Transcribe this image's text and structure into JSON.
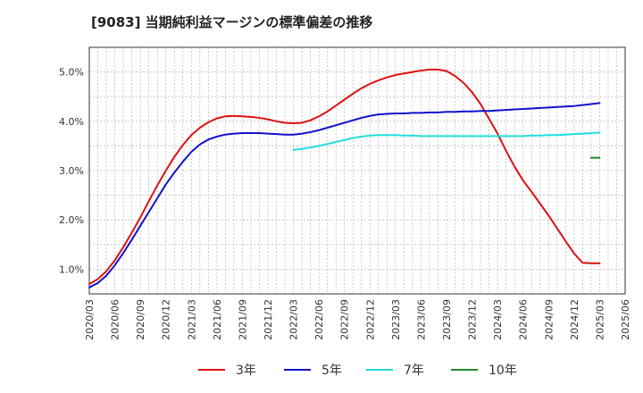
{
  "chart_data": {
    "type": "line",
    "title": "[9083]  当期純利益マージンの標準偏差の推移",
    "xlabel": "",
    "ylabel": "",
    "ylim": [
      0.5,
      5.5
    ],
    "y_ticks": [
      "1.0%",
      "2.0%",
      "3.0%",
      "4.0%",
      "5.0%"
    ],
    "y_tick_values": [
      1,
      2,
      3,
      4,
      5
    ],
    "x_ticks": [
      "2020/03",
      "2020/06",
      "2020/09",
      "2020/12",
      "2021/03",
      "2021/06",
      "2021/09",
      "2021/12",
      "2022/03",
      "2022/06",
      "2022/09",
      "2022/12",
      "2023/03",
      "2023/06",
      "2023/09",
      "2023/12",
      "2024/03",
      "2024/06",
      "2024/09",
      "2024/12",
      "2025/03",
      "2025/06"
    ],
    "grid": true,
    "legend_position": "bottom",
    "series": [
      {
        "name": "3年",
        "color": "#dd1111",
        "points": [
          [
            "2020/03",
            0.7
          ],
          [
            "2020/04",
            0.8
          ],
          [
            "2020/05",
            0.96
          ],
          [
            "2020/06",
            1.18
          ],
          [
            "2020/07",
            1.45
          ],
          [
            "2020/08",
            1.74
          ],
          [
            "2020/09",
            2.05
          ],
          [
            "2020/10",
            2.38
          ],
          [
            "2020/11",
            2.7
          ],
          [
            "2020/12",
            3.0
          ],
          [
            "2021/01",
            3.28
          ],
          [
            "2021/02",
            3.52
          ],
          [
            "2021/03",
            3.72
          ],
          [
            "2021/04",
            3.87
          ],
          [
            "2021/05",
            3.98
          ],
          [
            "2021/06",
            4.06
          ],
          [
            "2021/07",
            4.1
          ],
          [
            "2021/08",
            4.11
          ],
          [
            "2021/09",
            4.1
          ],
          [
            "2021/10",
            4.09
          ],
          [
            "2021/11",
            4.07
          ],
          [
            "2021/12",
            4.04
          ],
          [
            "2022/01",
            4.0
          ],
          [
            "2022/02",
            3.97
          ],
          [
            "2022/03",
            3.96
          ],
          [
            "2022/04",
            3.97
          ],
          [
            "2022/05",
            4.02
          ],
          [
            "2022/06",
            4.1
          ],
          [
            "2022/07",
            4.2
          ],
          [
            "2022/08",
            4.32
          ],
          [
            "2022/09",
            4.44
          ],
          [
            "2022/10",
            4.56
          ],
          [
            "2022/11",
            4.67
          ],
          [
            "2022/12",
            4.76
          ],
          [
            "2023/01",
            4.83
          ],
          [
            "2023/02",
            4.89
          ],
          [
            "2023/03",
            4.94
          ],
          [
            "2023/04",
            4.97
          ],
          [
            "2023/05",
            5.0
          ],
          [
            "2023/06",
            5.03
          ],
          [
            "2023/07",
            5.05
          ],
          [
            "2023/08",
            5.05
          ],
          [
            "2023/09",
            5.02
          ],
          [
            "2023/10",
            4.92
          ],
          [
            "2023/11",
            4.78
          ],
          [
            "2023/12",
            4.59
          ],
          [
            "2024/01",
            4.35
          ],
          [
            "2024/02",
            4.05
          ],
          [
            "2024/03",
            3.75
          ],
          [
            "2024/04",
            3.4
          ],
          [
            "2024/05",
            3.08
          ],
          [
            "2024/06",
            2.8
          ],
          [
            "2024/07",
            2.57
          ],
          [
            "2024/08",
            2.33
          ],
          [
            "2024/09",
            2.09
          ],
          [
            "2024/10",
            1.83
          ],
          [
            "2024/11",
            1.57
          ],
          [
            "2024/12",
            1.32
          ],
          [
            "2025/01",
            1.13
          ],
          [
            "2025/02",
            1.12
          ],
          [
            "2025/03",
            1.12
          ]
        ]
      },
      {
        "name": "5年",
        "color": "#1111cc",
        "points": [
          [
            "2020/03",
            0.63
          ],
          [
            "2020/04",
            0.72
          ],
          [
            "2020/05",
            0.87
          ],
          [
            "2020/06",
            1.08
          ],
          [
            "2020/07",
            1.33
          ],
          [
            "2020/08",
            1.6
          ],
          [
            "2020/09",
            1.88
          ],
          [
            "2020/10",
            2.16
          ],
          [
            "2020/11",
            2.44
          ],
          [
            "2020/12",
            2.72
          ],
          [
            "2021/01",
            2.96
          ],
          [
            "2021/02",
            3.18
          ],
          [
            "2021/03",
            3.38
          ],
          [
            "2021/04",
            3.53
          ],
          [
            "2021/05",
            3.63
          ],
          [
            "2021/06",
            3.69
          ],
          [
            "2021/07",
            3.73
          ],
          [
            "2021/08",
            3.75
          ],
          [
            "2021/09",
            3.76
          ],
          [
            "2021/10",
            3.76
          ],
          [
            "2021/11",
            3.76
          ],
          [
            "2021/12",
            3.75
          ],
          [
            "2022/01",
            3.74
          ],
          [
            "2022/02",
            3.73
          ],
          [
            "2022/03",
            3.73
          ],
          [
            "2022/04",
            3.75
          ],
          [
            "2022/05",
            3.78
          ],
          [
            "2022/06",
            3.82
          ],
          [
            "2022/07",
            3.87
          ],
          [
            "2022/08",
            3.92
          ],
          [
            "2022/09",
            3.97
          ],
          [
            "2022/10",
            4.02
          ],
          [
            "2022/11",
            4.07
          ],
          [
            "2022/12",
            4.11
          ],
          [
            "2023/01",
            4.14
          ],
          [
            "2023/02",
            4.15
          ],
          [
            "2023/03",
            4.16
          ],
          [
            "2023/04",
            4.16
          ],
          [
            "2023/05",
            4.17
          ],
          [
            "2023/06",
            4.17
          ],
          [
            "2023/07",
            4.18
          ],
          [
            "2023/08",
            4.18
          ],
          [
            "2023/09",
            4.19
          ],
          [
            "2023/10",
            4.19
          ],
          [
            "2023/11",
            4.2
          ],
          [
            "2023/12",
            4.2
          ],
          [
            "2024/01",
            4.21
          ],
          [
            "2024/02",
            4.21
          ],
          [
            "2024/03",
            4.22
          ],
          [
            "2024/04",
            4.23
          ],
          [
            "2024/05",
            4.24
          ],
          [
            "2024/06",
            4.25
          ],
          [
            "2024/07",
            4.26
          ],
          [
            "2024/08",
            4.27
          ],
          [
            "2024/09",
            4.28
          ],
          [
            "2024/10",
            4.29
          ],
          [
            "2024/11",
            4.3
          ],
          [
            "2024/12",
            4.31
          ],
          [
            "2025/01",
            4.33
          ],
          [
            "2025/02",
            4.35
          ],
          [
            "2025/03",
            4.37
          ]
        ]
      },
      {
        "name": "7年",
        "color": "#22dddd",
        "points": [
          [
            "2022/03",
            3.42
          ],
          [
            "2022/04",
            3.44
          ],
          [
            "2022/05",
            3.47
          ],
          [
            "2022/06",
            3.5
          ],
          [
            "2022/07",
            3.54
          ],
          [
            "2022/08",
            3.58
          ],
          [
            "2022/09",
            3.62
          ],
          [
            "2022/10",
            3.66
          ],
          [
            "2022/11",
            3.69
          ],
          [
            "2022/12",
            3.71
          ],
          [
            "2023/01",
            3.72
          ],
          [
            "2023/02",
            3.72
          ],
          [
            "2023/03",
            3.72
          ],
          [
            "2023/04",
            3.71
          ],
          [
            "2023/05",
            3.71
          ],
          [
            "2023/06",
            3.7
          ],
          [
            "2023/07",
            3.7
          ],
          [
            "2023/08",
            3.7
          ],
          [
            "2023/09",
            3.7
          ],
          [
            "2023/10",
            3.7
          ],
          [
            "2023/11",
            3.7
          ],
          [
            "2023/12",
            3.7
          ],
          [
            "2024/01",
            3.7
          ],
          [
            "2024/02",
            3.7
          ],
          [
            "2024/03",
            3.7
          ],
          [
            "2024/04",
            3.7
          ],
          [
            "2024/05",
            3.7
          ],
          [
            "2024/06",
            3.7
          ],
          [
            "2024/07",
            3.71
          ],
          [
            "2024/08",
            3.71
          ],
          [
            "2024/09",
            3.72
          ],
          [
            "2024/10",
            3.72
          ],
          [
            "2024/11",
            3.73
          ],
          [
            "2024/12",
            3.74
          ],
          [
            "2025/01",
            3.75
          ],
          [
            "2025/02",
            3.76
          ],
          [
            "2025/03",
            3.77
          ]
        ]
      },
      {
        "name": "10年",
        "color": "#228822",
        "points": [
          [
            "2025/02",
            3.26
          ],
          [
            "2025/03",
            3.26
          ]
        ]
      }
    ]
  }
}
